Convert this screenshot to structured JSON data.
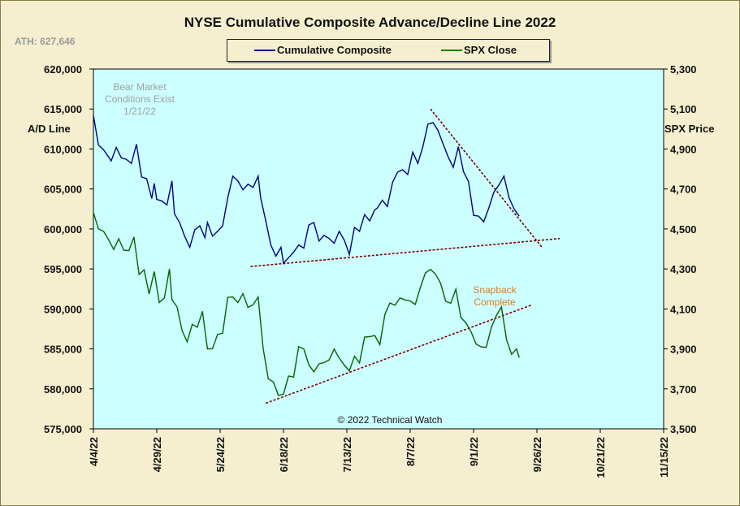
{
  "chart_data": {
    "type": "line",
    "title": "NYSE Cumulative  Composite Advance/Decline Line 2022",
    "ath_label": "ATH: 627,646",
    "ylabel_left": "A/D Line",
    "ylabel_right": "SPX Price",
    "ylim_left": [
      575000,
      620000
    ],
    "ylim_right": [
      3500,
      5300
    ],
    "yticks_left": [
      "620,000",
      "615,000",
      "610,000",
      "605,000",
      "600,000",
      "595,000",
      "590,000",
      "585,000",
      "580,000",
      "575,000"
    ],
    "yticks_right": [
      "5,300",
      "5,100",
      "4,900",
      "4,700",
      "4,500",
      "4,300",
      "4,100",
      "3,900",
      "3,700",
      "3,500"
    ],
    "x_ticks": [
      "4/4/22",
      "4/29/22",
      "5/24/22",
      "6/18/22",
      "7/13/22",
      "8/7/22",
      "9/1/22",
      "9/26/22",
      "10/21/22",
      "11/15/22"
    ],
    "x_range": [
      "2022-04-04",
      "2022-11-15"
    ],
    "annotations": {
      "bear": [
        "Bear Market",
        "Conditions  Exist",
        "1/21/22"
      ],
      "snapback": [
        "Snapback",
        "Complete"
      ],
      "copyright": "© 2022 Technical  Watch"
    },
    "series": [
      {
        "name": "Cumulative Composite",
        "axis": "left",
        "color": "#000080",
        "data": [
          [
            "2022-04-04",
            614200
          ],
          [
            "2022-04-06",
            610500
          ],
          [
            "2022-04-08",
            609900
          ],
          [
            "2022-04-10",
            609000
          ],
          [
            "2022-04-11",
            608500
          ],
          [
            "2022-04-13",
            610200
          ],
          [
            "2022-04-15",
            608900
          ],
          [
            "2022-04-17",
            608700
          ],
          [
            "2022-04-19",
            608200
          ],
          [
            "2022-04-21",
            610600
          ],
          [
            "2022-04-23",
            606500
          ],
          [
            "2022-04-25",
            606300
          ],
          [
            "2022-04-27",
            603800
          ],
          [
            "2022-04-28",
            605700
          ],
          [
            "2022-04-29",
            603700
          ],
          [
            "2022-05-01",
            603500
          ],
          [
            "2022-05-03",
            603000
          ],
          [
            "2022-05-05",
            606000
          ],
          [
            "2022-05-06",
            601900
          ],
          [
            "2022-05-08",
            600800
          ],
          [
            "2022-05-10",
            599100
          ],
          [
            "2022-05-12",
            597700
          ],
          [
            "2022-05-14",
            599900
          ],
          [
            "2022-05-16",
            600400
          ],
          [
            "2022-05-18",
            598900
          ],
          [
            "2022-05-19",
            600800
          ],
          [
            "2022-05-21",
            599100
          ],
          [
            "2022-05-23",
            599700
          ],
          [
            "2022-05-25",
            600400
          ],
          [
            "2022-05-27",
            603900
          ],
          [
            "2022-05-29",
            606600
          ],
          [
            "2022-05-31",
            606000
          ],
          [
            "2022-06-02",
            604900
          ],
          [
            "2022-06-04",
            605600
          ],
          [
            "2022-06-06",
            605200
          ],
          [
            "2022-06-08",
            606600
          ],
          [
            "2022-06-09",
            603900
          ],
          [
            "2022-06-11",
            601000
          ],
          [
            "2022-06-13",
            598000
          ],
          [
            "2022-06-15",
            596600
          ],
          [
            "2022-06-17",
            597700
          ],
          [
            "2022-06-18",
            595700
          ],
          [
            "2022-06-20",
            596400
          ],
          [
            "2022-06-22",
            597100
          ],
          [
            "2022-06-24",
            598000
          ],
          [
            "2022-06-26",
            597600
          ],
          [
            "2022-06-28",
            600500
          ],
          [
            "2022-06-30",
            600800
          ],
          [
            "2022-07-02",
            598500
          ],
          [
            "2022-07-04",
            599200
          ],
          [
            "2022-07-06",
            598800
          ],
          [
            "2022-07-08",
            598200
          ],
          [
            "2022-07-10",
            599700
          ],
          [
            "2022-07-12",
            598600
          ],
          [
            "2022-07-14",
            596800
          ],
          [
            "2022-07-16",
            600200
          ],
          [
            "2022-07-18",
            599700
          ],
          [
            "2022-07-20",
            601800
          ],
          [
            "2022-07-22",
            601000
          ],
          [
            "2022-07-24",
            602400
          ],
          [
            "2022-07-25",
            602600
          ],
          [
            "2022-07-27",
            603600
          ],
          [
            "2022-07-29",
            602800
          ],
          [
            "2022-07-31",
            605800
          ],
          [
            "2022-08-02",
            607100
          ],
          [
            "2022-08-04",
            607400
          ],
          [
            "2022-08-06",
            606800
          ],
          [
            "2022-08-08",
            609600
          ],
          [
            "2022-08-10",
            608200
          ],
          [
            "2022-08-12",
            610300
          ],
          [
            "2022-08-14",
            613100
          ],
          [
            "2022-08-16",
            613300
          ],
          [
            "2022-08-18",
            612300
          ],
          [
            "2022-08-20",
            610600
          ],
          [
            "2022-08-22",
            609000
          ],
          [
            "2022-08-24",
            607700
          ],
          [
            "2022-08-26",
            610300
          ],
          [
            "2022-08-28",
            607200
          ],
          [
            "2022-08-30",
            605900
          ],
          [
            "2022-09-01",
            601700
          ],
          [
            "2022-09-03",
            601600
          ],
          [
            "2022-09-05",
            600900
          ],
          [
            "2022-09-07",
            602600
          ],
          [
            "2022-09-09",
            604600
          ],
          [
            "2022-09-11",
            605500
          ],
          [
            "2022-09-13",
            606600
          ],
          [
            "2022-09-15",
            603900
          ],
          [
            "2022-09-17",
            602500
          ],
          [
            "2022-09-19",
            601600
          ]
        ]
      },
      {
        "name": "SPX Close",
        "axis": "right",
        "color": "#006400",
        "data": [
          [
            "2022-04-04",
            4582
          ],
          [
            "2022-04-06",
            4500
          ],
          [
            "2022-04-08",
            4488
          ],
          [
            "2022-04-10",
            4446
          ],
          [
            "2022-04-12",
            4397
          ],
          [
            "2022-04-14",
            4451
          ],
          [
            "2022-04-16",
            4393
          ],
          [
            "2022-04-18",
            4392
          ],
          [
            "2022-04-20",
            4460
          ],
          [
            "2022-04-22",
            4272
          ],
          [
            "2022-04-24",
            4296
          ],
          [
            "2022-04-26",
            4175
          ],
          [
            "2022-04-28",
            4287
          ],
          [
            "2022-04-30",
            4132
          ],
          [
            "2022-05-02",
            4155
          ],
          [
            "2022-05-04",
            4300
          ],
          [
            "2022-05-05",
            4146
          ],
          [
            "2022-05-07",
            4110
          ],
          [
            "2022-05-09",
            3991
          ],
          [
            "2022-05-11",
            3935
          ],
          [
            "2022-05-13",
            4023
          ],
          [
            "2022-05-15",
            4008
          ],
          [
            "2022-05-17",
            4088
          ],
          [
            "2022-05-19",
            3900
          ],
          [
            "2022-05-21",
            3901
          ],
          [
            "2022-05-23",
            3973
          ],
          [
            "2022-05-25",
            3978
          ],
          [
            "2022-05-27",
            4158
          ],
          [
            "2022-05-29",
            4160
          ],
          [
            "2022-05-31",
            4132
          ],
          [
            "2022-06-02",
            4176
          ],
          [
            "2022-06-04",
            4108
          ],
          [
            "2022-06-06",
            4121
          ],
          [
            "2022-06-08",
            4160
          ],
          [
            "2022-06-10",
            3901
          ],
          [
            "2022-06-12",
            3750
          ],
          [
            "2022-06-14",
            3735
          ],
          [
            "2022-06-16",
            3667
          ],
          [
            "2022-06-18",
            3674
          ],
          [
            "2022-06-20",
            3764
          ],
          [
            "2022-06-22",
            3759
          ],
          [
            "2022-06-24",
            3911
          ],
          [
            "2022-06-26",
            3900
          ],
          [
            "2022-06-28",
            3821
          ],
          [
            "2022-06-30",
            3785
          ],
          [
            "2022-07-02",
            3825
          ],
          [
            "2022-07-04",
            3831
          ],
          [
            "2022-07-06",
            3845
          ],
          [
            "2022-07-08",
            3899
          ],
          [
            "2022-07-10",
            3854
          ],
          [
            "2022-07-12",
            3819
          ],
          [
            "2022-07-14",
            3790
          ],
          [
            "2022-07-16",
            3863
          ],
          [
            "2022-07-18",
            3830
          ],
          [
            "2022-07-20",
            3959
          ],
          [
            "2022-07-22",
            3961
          ],
          [
            "2022-07-24",
            3967
          ],
          [
            "2022-07-26",
            3921
          ],
          [
            "2022-07-28",
            4072
          ],
          [
            "2022-07-30",
            4130
          ],
          [
            "2022-08-01",
            4118
          ],
          [
            "2022-08-03",
            4155
          ],
          [
            "2022-08-05",
            4145
          ],
          [
            "2022-08-07",
            4140
          ],
          [
            "2022-08-09",
            4122
          ],
          [
            "2022-08-11",
            4207
          ],
          [
            "2022-08-13",
            4280
          ],
          [
            "2022-08-15",
            4297
          ],
          [
            "2022-08-17",
            4274
          ],
          [
            "2022-08-19",
            4228
          ],
          [
            "2022-08-21",
            4138
          ],
          [
            "2022-08-23",
            4128
          ],
          [
            "2022-08-25",
            4199
          ],
          [
            "2022-08-27",
            4057
          ],
          [
            "2022-08-29",
            4030
          ],
          [
            "2022-08-31",
            3986
          ],
          [
            "2022-09-02",
            3924
          ],
          [
            "2022-09-04",
            3910
          ],
          [
            "2022-09-06",
            3908
          ],
          [
            "2022-09-08",
            4006
          ],
          [
            "2022-09-10",
            4067
          ],
          [
            "2022-09-12",
            4110
          ],
          [
            "2022-09-14",
            3946
          ],
          [
            "2022-09-16",
            3873
          ],
          [
            "2022-09-18",
            3900
          ],
          [
            "2022-09-19",
            3856
          ]
        ]
      }
    ],
    "trendlines": [
      {
        "axis": "left",
        "color": "#800000",
        "points": [
          [
            "2022-06-05",
            595300
          ],
          [
            "2022-10-05",
            598800
          ]
        ]
      },
      {
        "axis": "left",
        "color": "#800000",
        "points": [
          [
            "2022-08-15",
            615000
          ],
          [
            "2022-09-28",
            597700
          ]
        ]
      },
      {
        "axis": "left",
        "color": "#800000",
        "points": [
          [
            "2022-06-11",
            578200
          ],
          [
            "2022-09-24",
            590500
          ]
        ]
      }
    ]
  }
}
